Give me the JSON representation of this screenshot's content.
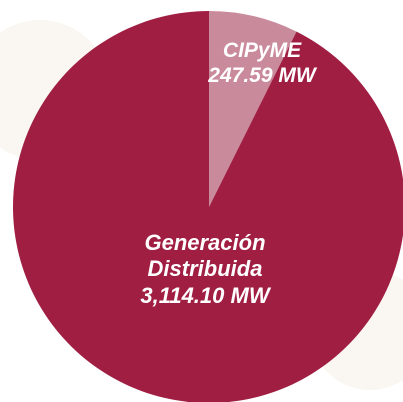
{
  "chart_data": {
    "type": "pie",
    "categories": [
      "CIPyME",
      "Generación Distribuida"
    ],
    "values": [
      247.59,
      3114.1
    ],
    "value_labels": [
      "247.59 MW",
      "3,114.10 MW"
    ],
    "colors": [
      "#c98a9c",
      "#a01e42"
    ]
  }
}
